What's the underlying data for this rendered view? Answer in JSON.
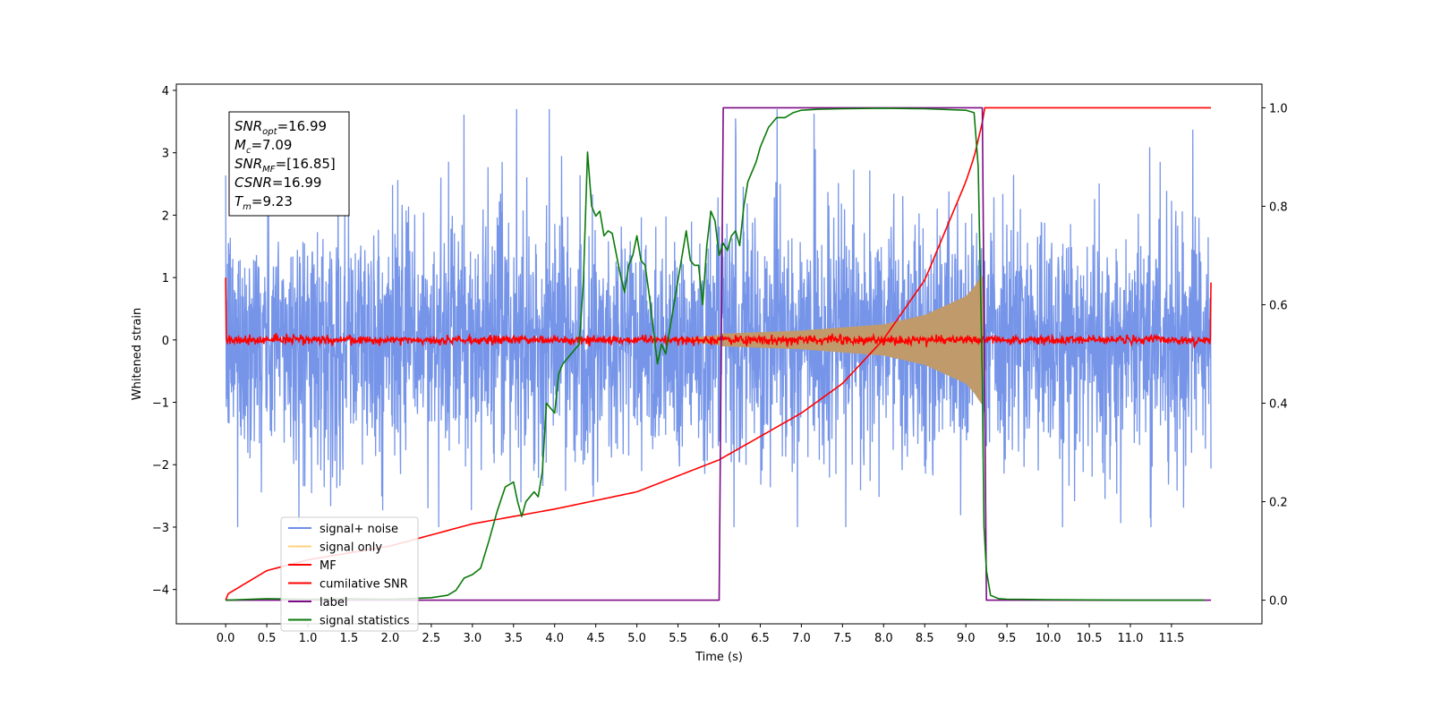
{
  "chart_data": {
    "type": "line",
    "xlabel": "Time (s)",
    "ylabel": "Whitened strain",
    "xlim": [
      -0.6,
      12.6
    ],
    "ylim": [
      -4.55,
      4.1
    ],
    "y2lim": [
      -0.048,
      1.048
    ],
    "x_ticks": [
      0.0,
      0.5,
      1.0,
      1.5,
      2.0,
      2.5,
      3.0,
      3.5,
      4.0,
      4.5,
      5.0,
      5.5,
      6.0,
      6.5,
      7.0,
      7.5,
      8.0,
      8.5,
      9.0,
      9.5,
      10.0,
      10.5,
      11.0,
      11.5
    ],
    "x_tick_labels": [
      "0.0",
      "0.5",
      "1.0",
      "1.5",
      "2.0",
      "2.5",
      "3.0",
      "3.5",
      "4.0",
      "4.5",
      "5.0",
      "5.5",
      "6.0",
      "6.5",
      "7.0",
      "7.5",
      "8.0",
      "8.5",
      "9.0",
      "9.5",
      "10.0",
      "10.5",
      "11.0",
      "11.5"
    ],
    "y_ticks": [
      4,
      3,
      2,
      1,
      0,
      -1,
      -2,
      -3,
      -4
    ],
    "y_tick_labels": [
      "4",
      "3",
      "2",
      "1",
      "0",
      "−1",
      "−2",
      "−3",
      "−4"
    ],
    "y2_ticks": [
      1.0,
      0.8,
      0.6,
      0.4,
      0.2,
      0.0
    ],
    "y2_tick_labels": [
      "1.0",
      "0.8",
      "0.6",
      "0.4",
      "0.2",
      "0.0"
    ],
    "info_box": [
      {
        "main": "SNR",
        "sub": "opt",
        "value": "=16.99"
      },
      {
        "main": "M",
        "sub": "c",
        "value": "=7.09"
      },
      {
        "main": "SNR",
        "sub": "MF",
        "value": "=[16.85]"
      },
      {
        "main": "CSNR",
        "sub": "",
        "value": "=16.99"
      },
      {
        "main": "T",
        "sub": "m",
        "value": "=9.23"
      }
    ],
    "legend_position": "lower-left",
    "series": [
      {
        "name": "signal+ noise",
        "color": "#6f8fe8",
        "axis": "left",
        "description": "noisy whitened strain from 0 to 12 s",
        "envelope": {
          "x_start": 0.0,
          "x_end": 11.98,
          "range": [
            -3.0,
            3.7
          ]
        }
      },
      {
        "name": "signal only",
        "color": "#ffd27f",
        "axis": "left",
        "description": "chirp signal growing toward merger",
        "x": [
          6.0,
          7.0,
          8.0,
          8.5,
          9.0,
          9.1,
          9.2,
          9.23
        ],
        "y_amp": [
          0.1,
          0.15,
          0.25,
          0.4,
          0.7,
          0.85,
          1.05,
          0.0
        ]
      },
      {
        "name": "MF",
        "color": "#ff0000",
        "axis": "left",
        "description": "matched filter output near zero with small noise",
        "x_start": 0.0,
        "x_end": 11.98,
        "y_level": 0.0
      },
      {
        "name": "cumilative SNR",
        "color": "#ff0000",
        "axis": "right",
        "x": [
          0.0,
          0.02,
          0.5,
          1.0,
          2.0,
          3.0,
          4.0,
          5.0,
          6.0,
          7.0,
          7.5,
          8.0,
          8.5,
          9.0,
          9.1,
          9.2,
          9.23,
          11.98
        ],
        "y": [
          0.0,
          0.012,
          0.06,
          0.082,
          0.11,
          0.155,
          0.185,
          0.22,
          0.285,
          0.38,
          0.44,
          0.53,
          0.65,
          0.85,
          0.9,
          0.97,
          1.0,
          1.0
        ]
      },
      {
        "name": "label",
        "color": "#7b0c86",
        "axis": "right",
        "x": [
          0.0,
          6.0,
          6.05,
          9.2,
          9.25,
          11.98
        ],
        "y": [
          0.0,
          0.0,
          1.0,
          1.0,
          0.0,
          0.0
        ]
      },
      {
        "name": "signal statistics",
        "color": "#0a7a0a",
        "axis": "right",
        "x": [
          0.0,
          0.5,
          1.0,
          1.5,
          2.0,
          2.2,
          2.5,
          2.7,
          2.8,
          2.9,
          3.0,
          3.1,
          3.2,
          3.3,
          3.4,
          3.45,
          3.5,
          3.55,
          3.6,
          3.65,
          3.7,
          3.75,
          3.8,
          3.85,
          3.9,
          4.0,
          4.05,
          4.1,
          4.15,
          4.2,
          4.3,
          4.35,
          4.4,
          4.45,
          4.5,
          4.55,
          4.6,
          4.65,
          4.7,
          4.8,
          4.85,
          4.9,
          4.95,
          5.0,
          5.05,
          5.1,
          5.15,
          5.2,
          5.25,
          5.3,
          5.35,
          5.4,
          5.45,
          5.5,
          5.55,
          5.6,
          5.65,
          5.7,
          5.75,
          5.8,
          5.85,
          5.9,
          5.95,
          6.0,
          6.05,
          6.1,
          6.15,
          6.2,
          6.25,
          6.3,
          6.35,
          6.4,
          6.45,
          6.5,
          6.6,
          6.7,
          6.8,
          6.9,
          7.0,
          7.2,
          7.5,
          8.0,
          8.5,
          9.0,
          9.1,
          9.15,
          9.2,
          9.22,
          9.25,
          9.3,
          9.4,
          9.5,
          10.0,
          11.0,
          11.9
        ],
        "y": [
          0.0,
          0.003,
          0.002,
          0.003,
          0.002,
          0.003,
          0.005,
          0.01,
          0.02,
          0.045,
          0.052,
          0.065,
          0.12,
          0.18,
          0.23,
          0.235,
          0.24,
          0.2,
          0.17,
          0.2,
          0.21,
          0.22,
          0.21,
          0.26,
          0.4,
          0.38,
          0.46,
          0.48,
          0.49,
          0.5,
          0.52,
          0.65,
          0.91,
          0.8,
          0.78,
          0.79,
          0.74,
          0.75,
          0.745,
          0.66,
          0.625,
          0.68,
          0.7,
          0.74,
          0.69,
          0.68,
          0.62,
          0.55,
          0.48,
          0.52,
          0.5,
          0.55,
          0.6,
          0.65,
          0.7,
          0.75,
          0.69,
          0.68,
          0.68,
          0.6,
          0.72,
          0.79,
          0.77,
          0.7,
          0.725,
          0.71,
          0.74,
          0.75,
          0.72,
          0.8,
          0.85,
          0.87,
          0.89,
          0.92,
          0.96,
          0.98,
          0.98,
          0.99,
          0.995,
          0.997,
          0.998,
          0.999,
          0.998,
          0.995,
          0.99,
          0.88,
          0.45,
          0.15,
          0.06,
          0.01,
          0.003,
          0.002,
          0.001,
          0.0,
          0.0
        ]
      }
    ]
  }
}
